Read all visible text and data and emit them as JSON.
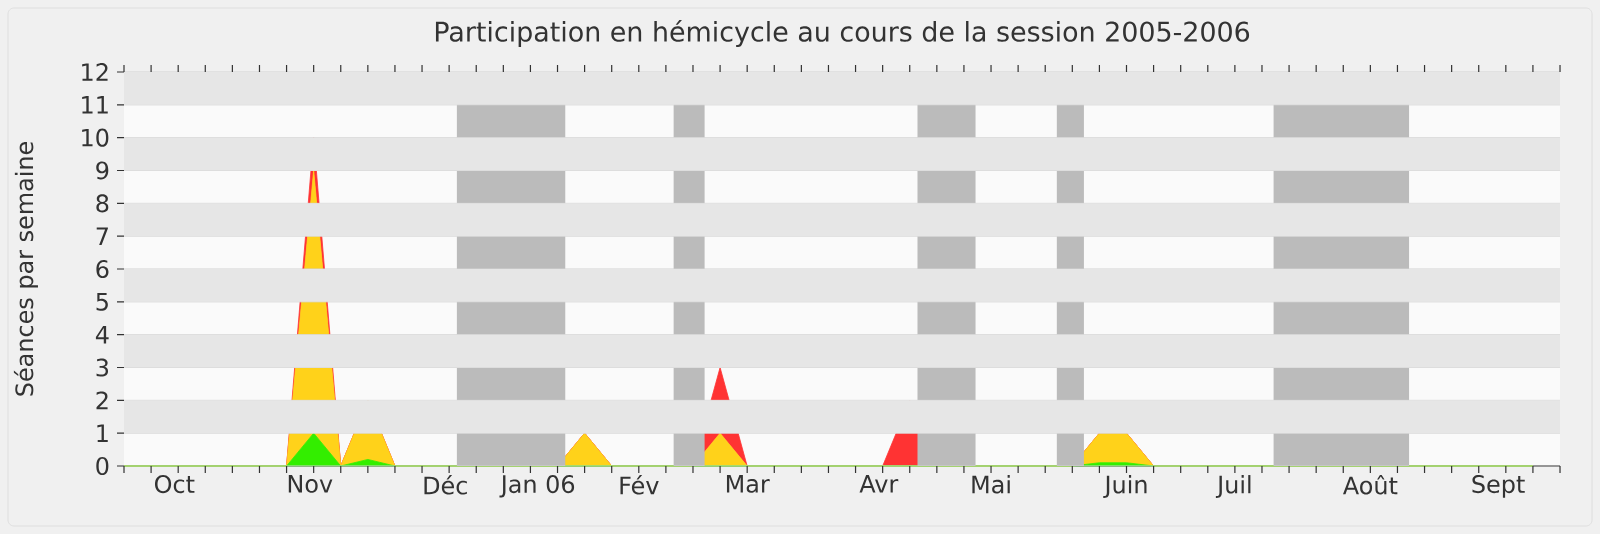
{
  "chart_data": {
    "type": "area",
    "stacked": true,
    "title": "Participation en hémicycle au cours de la session 2005-2006",
    "ylabel": "Séances par semaine",
    "x": [
      "2005-09-26",
      "2005-10-03",
      "2005-10-10",
      "2005-10-17",
      "2005-10-24",
      "2005-10-31",
      "2005-11-07",
      "2005-11-14",
      "2005-11-21",
      "2005-11-28",
      "2005-12-05",
      "2005-12-12",
      "2005-12-19",
      "2005-12-26",
      "2006-01-02",
      "2006-01-09",
      "2006-01-16",
      "2006-01-23",
      "2006-01-30",
      "2006-02-06",
      "2006-02-13",
      "2006-02-20",
      "2006-02-27",
      "2006-03-06",
      "2006-03-13",
      "2006-03-20",
      "2006-03-27",
      "2006-04-03",
      "2006-04-10",
      "2006-04-17",
      "2006-04-24",
      "2006-05-01",
      "2006-05-08",
      "2006-05-15",
      "2006-05-22",
      "2006-05-29",
      "2006-06-05",
      "2006-06-12",
      "2006-06-19",
      "2006-06-26",
      "2006-07-03",
      "2006-07-10",
      "2006-07-17",
      "2006-07-24",
      "2006-07-31",
      "2006-08-07",
      "2006-08-14",
      "2006-08-21",
      "2006-08-28",
      "2006-09-04",
      "2006-09-11",
      "2006-09-18",
      "2006-09-25"
    ],
    "series": [
      {
        "color": "#33ee00",
        "values": [
          0,
          0,
          0,
          0,
          0,
          0,
          0,
          1,
          0,
          0.2,
          0,
          0,
          0,
          0,
          0,
          0,
          0,
          0,
          0,
          0,
          0,
          0,
          0,
          0,
          0,
          0,
          0,
          0,
          0,
          0,
          0,
          0,
          0,
          0,
          0,
          0,
          0.1,
          0.1,
          0,
          0,
          0,
          0,
          0,
          0,
          0,
          0,
          0,
          0,
          0,
          0,
          0,
          0,
          0
        ]
      },
      {
        "color": "#ffd21a",
        "values": [
          0,
          0,
          0,
          0,
          0,
          0,
          0,
          8,
          0,
          1.8,
          0,
          0,
          0,
          0,
          0,
          0,
          0,
          1,
          0,
          0,
          0,
          0,
          1,
          0,
          0,
          0,
          0,
          0,
          0,
          0,
          0,
          0,
          0,
          0,
          0,
          0,
          0.9,
          0.9,
          0,
          0,
          0,
          0,
          0,
          0,
          0,
          0,
          0,
          0,
          0,
          0,
          0,
          0,
          0
        ]
      },
      {
        "color": "#ff3333",
        "values": [
          0,
          0,
          0,
          0,
          0,
          0,
          0,
          1,
          0,
          0,
          0,
          0,
          0,
          0,
          0,
          0,
          0,
          0,
          0,
          0,
          0,
          0,
          2,
          0,
          0,
          0,
          0,
          0,
          0,
          2,
          0,
          0,
          0,
          0,
          0,
          0,
          0,
          0,
          0,
          0,
          0,
          0,
          0,
          0,
          0,
          0,
          0,
          0,
          0,
          0,
          0,
          0,
          0
        ]
      }
    ],
    "xlim": [
      "2005-09-26",
      "2006-10-02"
    ],
    "ylim": [
      0,
      12
    ],
    "yticks": [
      0,
      1,
      2,
      3,
      4,
      5,
      6,
      7,
      8,
      9,
      10,
      11,
      12
    ],
    "xticks": [
      {
        "value": "2005-10-09",
        "label": "Oct"
      },
      {
        "value": "2005-11-13",
        "label": "Nov"
      },
      {
        "value": "2005-12-18",
        "label": "Déc"
      },
      {
        "value": "2006-01-11",
        "label": "Jan 06"
      },
      {
        "value": "2006-02-06",
        "label": "Fév"
      },
      {
        "value": "2006-03-06",
        "label": "Mar"
      },
      {
        "value": "2006-04-09",
        "label": "Avr"
      },
      {
        "value": "2006-05-08",
        "label": "Mai"
      },
      {
        "value": "2006-06-12",
        "label": "Juin"
      },
      {
        "value": "2006-07-10",
        "label": "Juil"
      },
      {
        "value": "2006-08-14",
        "label": "Août"
      },
      {
        "value": "2006-09-16",
        "label": "Sept"
      }
    ],
    "bands": [
      {
        "axis": "x",
        "from": "2005-12-21",
        "to": "2006-01-18",
        "color": "#bbbbbb"
      },
      {
        "axis": "x",
        "from": "2006-02-15",
        "to": "2006-02-23",
        "color": "#bbbbbb"
      },
      {
        "axis": "x",
        "from": "2006-04-19",
        "to": "2006-05-04",
        "color": "#bbbbbb"
      },
      {
        "axis": "x",
        "from": "2006-05-25",
        "to": "2006-06-01",
        "color": "#bbbbbb"
      },
      {
        "axis": "x",
        "from": "2006-07-20",
        "to": "2006-08-24",
        "color": "#bbbbbb"
      }
    ],
    "grid": "y"
  }
}
